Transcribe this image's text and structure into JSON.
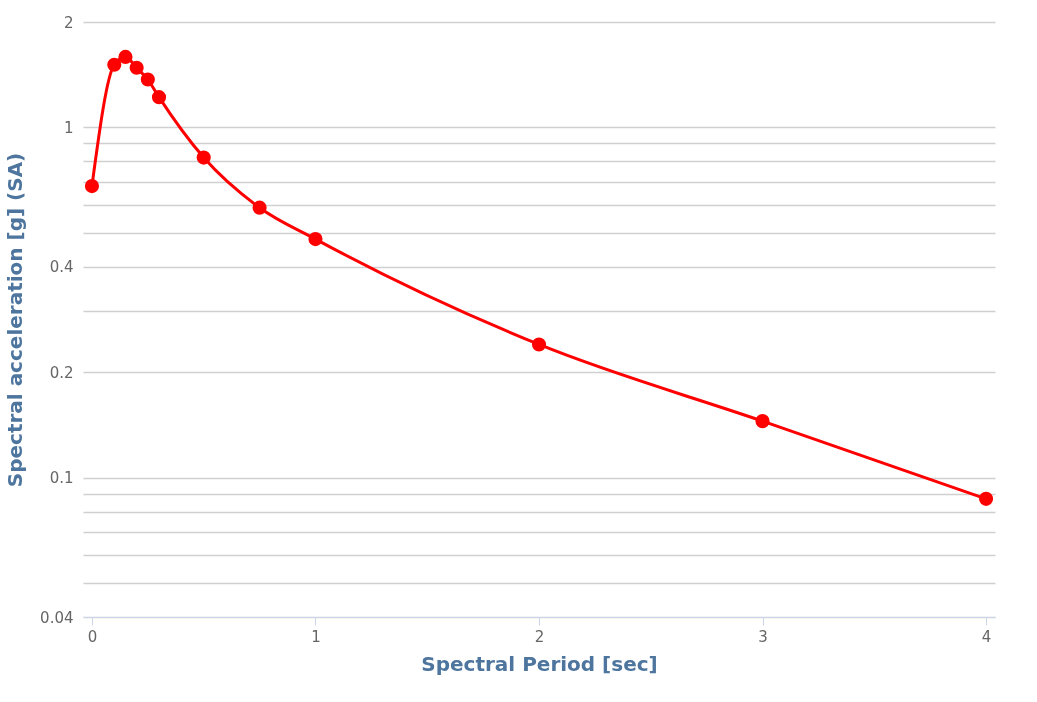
{
  "chart_data": {
    "type": "line",
    "xlabel": "Spectral Period [sec]",
    "ylabel": "Spectral acceleration [g] (SA)",
    "x": [
      0,
      0.1,
      0.15,
      0.2,
      0.25,
      0.3,
      0.5,
      0.75,
      1,
      2,
      3,
      4
    ],
    "series": [
      {
        "color": "#ff0000",
        "values": [
          0.68,
          1.51,
          1.59,
          1.48,
          1.37,
          1.22,
          0.82,
          0.59,
          0.48,
          0.24,
          0.145,
          0.087
        ]
      }
    ],
    "xlim": [
      -0.04,
      4.04
    ],
    "xticks": [
      0,
      1,
      2,
      3,
      4
    ],
    "ylim": [
      0.04,
      2
    ],
    "log": true,
    "grid": "y",
    "marker": "circle",
    "line_style": "solid",
    "yticks": [
      0.04,
      {
        "value": 0.05,
        "label": null
      },
      {
        "value": 0.06,
        "label": null
      },
      {
        "value": 0.07,
        "label": null
      },
      {
        "value": 0.08,
        "label": null
      },
      {
        "value": 0.09,
        "label": null
      },
      0.1,
      0.2,
      {
        "value": 0.3,
        "label": null
      },
      0.4,
      {
        "value": 0.5,
        "label": null
      },
      {
        "value": 0.6,
        "label": null
      },
      {
        "value": 0.7,
        "label": null
      },
      {
        "value": 0.8,
        "label": null
      },
      {
        "value": 0.9,
        "label": null
      },
      1,
      2
    ]
  }
}
